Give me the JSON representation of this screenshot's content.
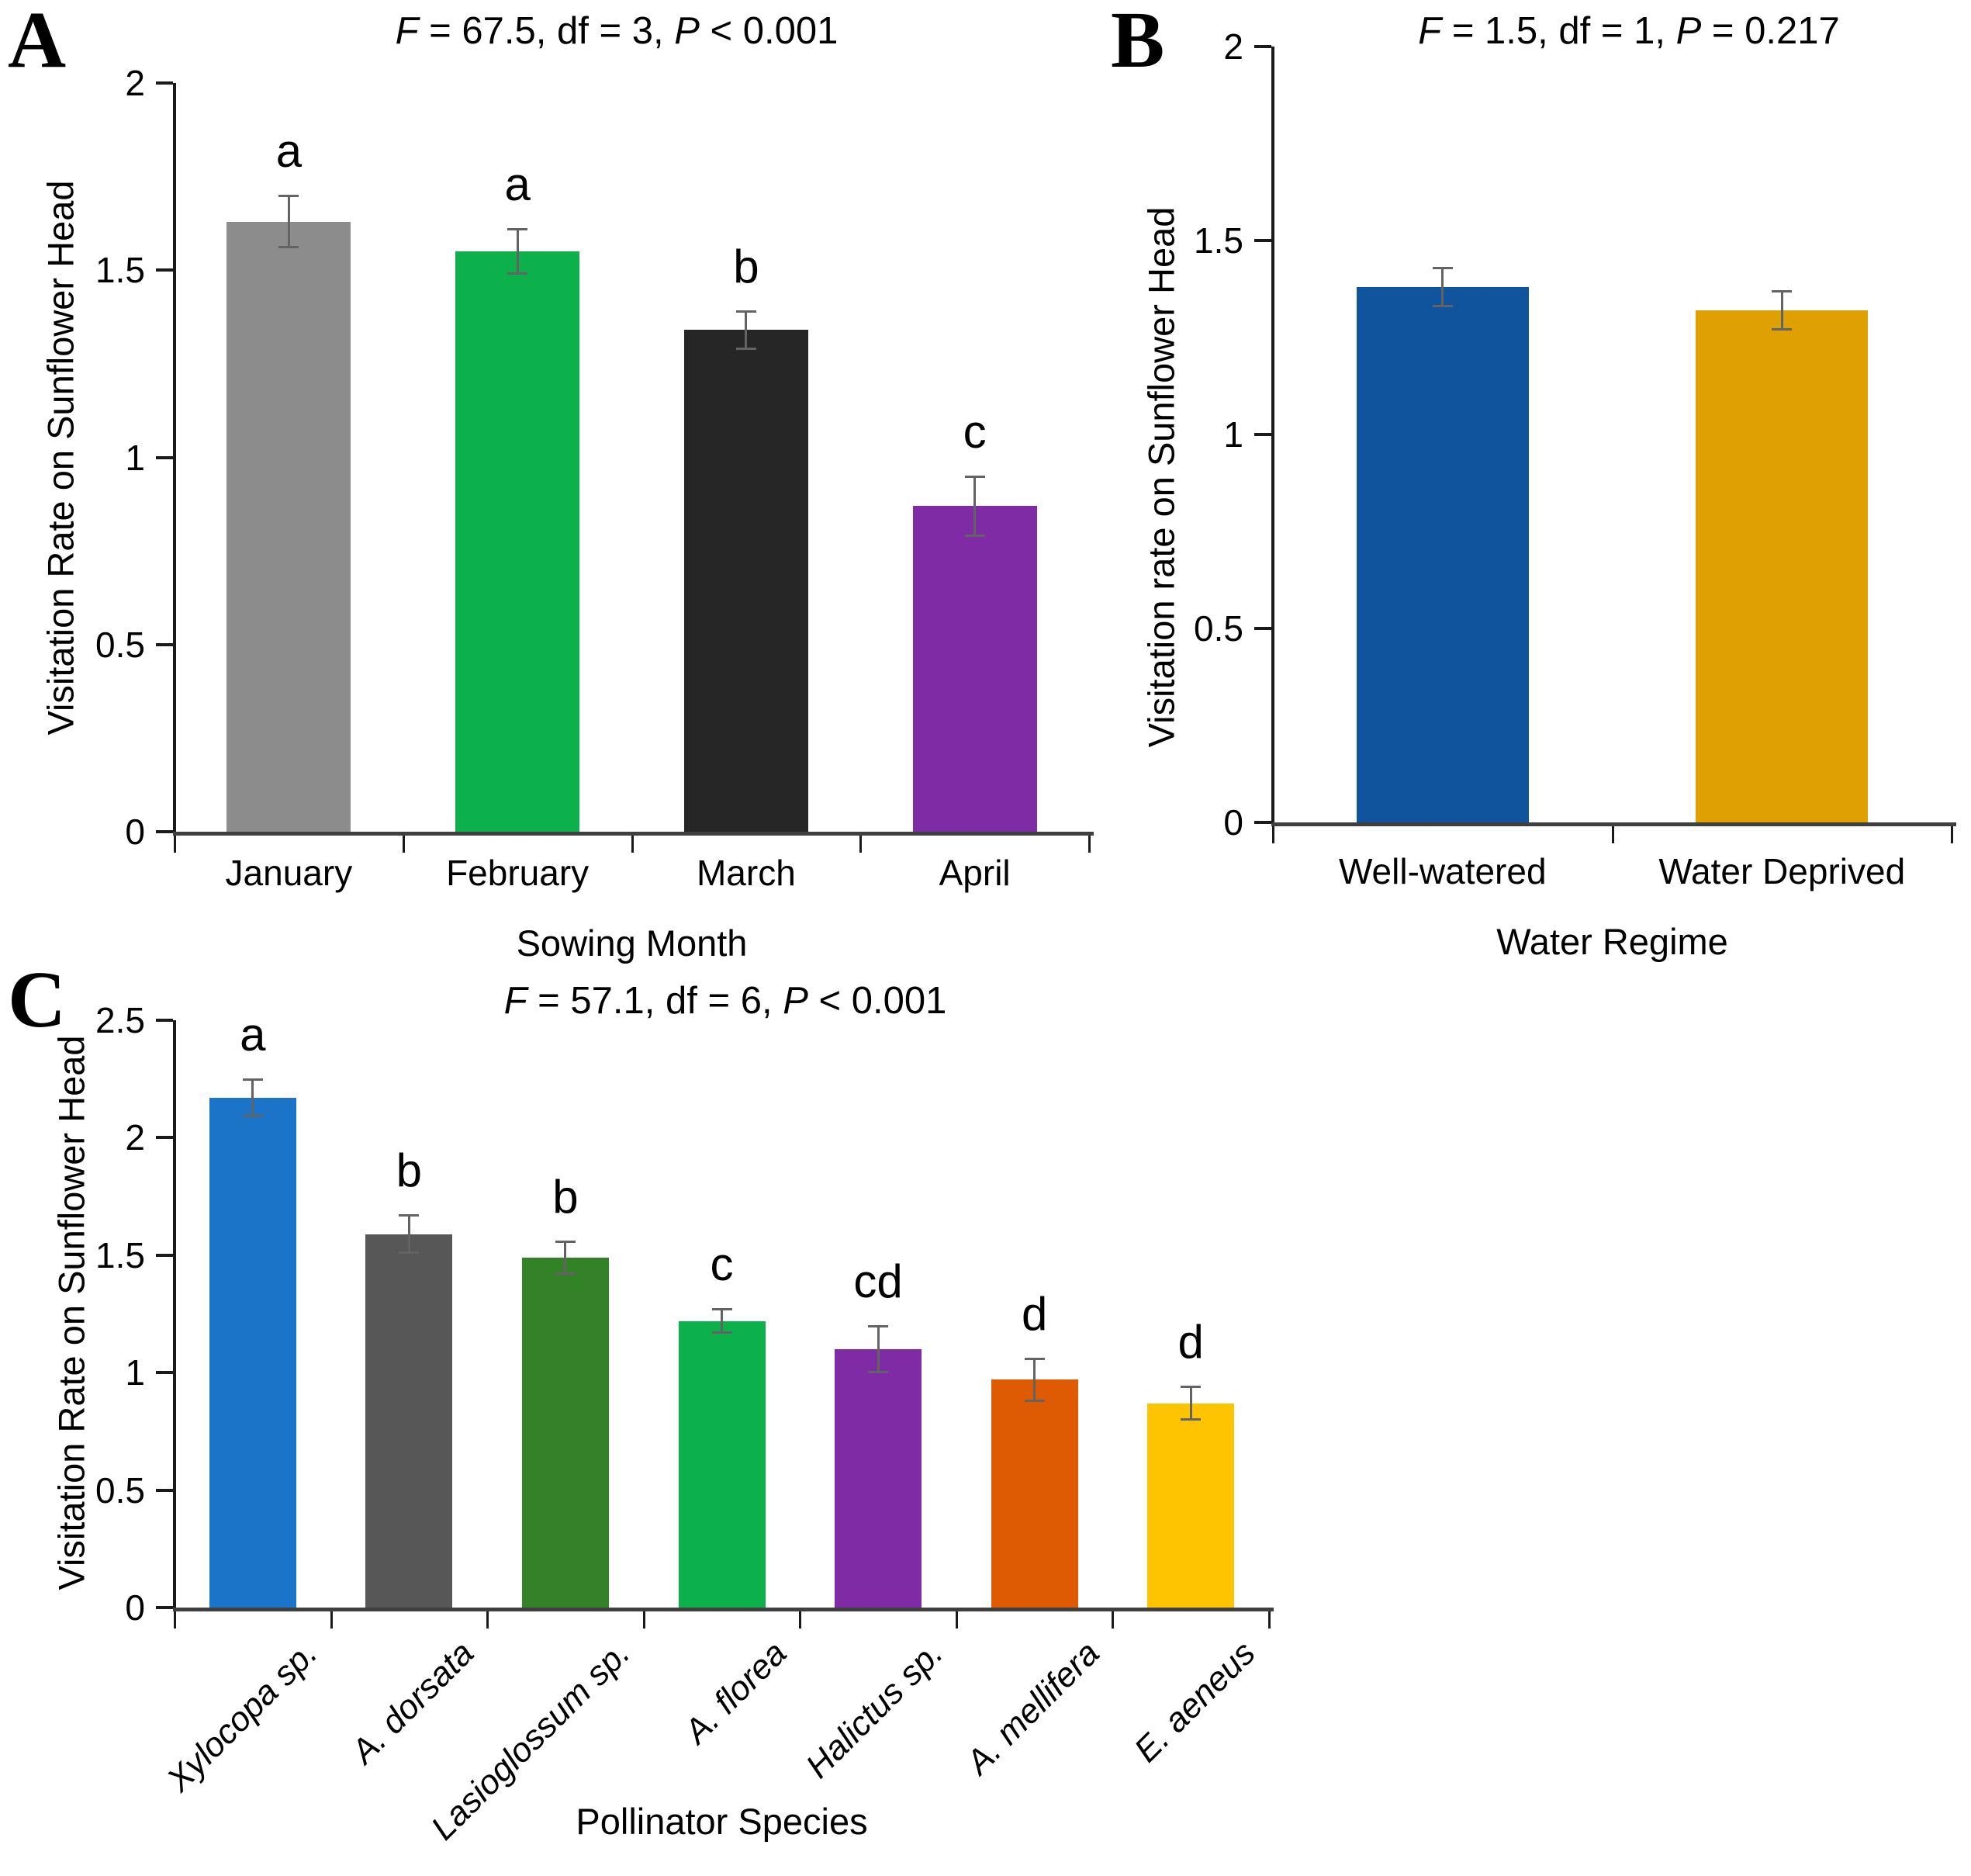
{
  "figure": {
    "background": "#ffffff",
    "axis_color": "#1a1a1a",
    "error_bar_color": "#636363"
  },
  "chart_data": [
    {
      "panel_letter": "A",
      "type": "bar",
      "title_plain": "F = 67.5, df = 3, P < 0.001",
      "title_parts": [
        {
          "text": "F",
          "italic": true
        },
        {
          "text": " = 67.5, df = 3, ",
          "italic": false
        },
        {
          "text": "P",
          "italic": true
        },
        {
          "text": " < 0.001",
          "italic": false
        }
      ],
      "xlabel": "Sowing Month",
      "ylabel": "Visitation Rate on Sunflower Head",
      "ylim": [
        0,
        2
      ],
      "yticks": [
        0,
        0.5,
        1,
        1.5,
        2
      ],
      "ytick_labels": [
        "0",
        "0.5",
        "1",
        "1.5",
        "2"
      ],
      "categories": [
        "January",
        "February",
        "March",
        "April"
      ],
      "values": [
        1.63,
        1.55,
        1.34,
        0.87
      ],
      "errors": [
        0.07,
        0.06,
        0.05,
        0.08
      ],
      "sig_letters": [
        "a",
        "a",
        "b",
        "c"
      ],
      "bar_colors": [
        "#8C8C8C",
        "#0CB14C",
        "#262626",
        "#7F2BA5"
      ],
      "italic_categories": false,
      "grid": "off",
      "legend": "none"
    },
    {
      "panel_letter": "B",
      "type": "bar",
      "title_plain": "F = 1.5, df = 1, P = 0.217",
      "title_parts": [
        {
          "text": "F",
          "italic": true
        },
        {
          "text": " = 1.5, df = 1, ",
          "italic": false
        },
        {
          "text": "P",
          "italic": true
        },
        {
          "text": " = 0.217",
          "italic": false
        }
      ],
      "xlabel": "Water Regime",
      "ylabel": "Visitation rate on Sunflower Head",
      "ylim": [
        0,
        2
      ],
      "yticks": [
        0,
        0.5,
        1,
        1.5,
        2
      ],
      "ytick_labels": [
        "0",
        "0.5",
        "1",
        "1.5",
        "2"
      ],
      "categories": [
        "Well-watered",
        "Water Deprived"
      ],
      "values": [
        1.38,
        1.32
      ],
      "errors": [
        0.05,
        0.05
      ],
      "sig_letters": [
        "",
        ""
      ],
      "bar_colors": [
        "#10549E",
        "#DFA004"
      ],
      "italic_categories": false,
      "grid": "off",
      "legend": "none"
    },
    {
      "panel_letter": "C",
      "type": "bar",
      "title_plain": "F = 57.1, df = 6, P < 0.001",
      "title_parts": [
        {
          "text": "F",
          "italic": true
        },
        {
          "text": " = 57.1, df = 6, ",
          "italic": false
        },
        {
          "text": "P",
          "italic": true
        },
        {
          "text": " < 0.001",
          "italic": false
        }
      ],
      "xlabel": "Pollinator Species",
      "ylabel": "Visitation Rate on Sunflower Head",
      "ylim": [
        0,
        2.5
      ],
      "yticks": [
        0,
        0.5,
        1,
        1.5,
        2,
        2.5
      ],
      "ytick_labels": [
        "0",
        "0.5",
        "1",
        "1.5",
        "2",
        "2.5"
      ],
      "categories": [
        "Xylocopa sp.",
        "A. dorsata",
        "Lasioglossum sp.",
        "A. florea",
        "Halictus sp.",
        "A. mellifera",
        "E. aeneus"
      ],
      "values": [
        2.17,
        1.59,
        1.49,
        1.22,
        1.1,
        0.97,
        0.87
      ],
      "errors": [
        0.08,
        0.08,
        0.07,
        0.05,
        0.1,
        0.09,
        0.07
      ],
      "sig_letters": [
        "a",
        "b",
        "b",
        "c",
        "cd",
        "d",
        "d"
      ],
      "bar_colors": [
        "#1B74C8",
        "#575757",
        "#348227",
        "#0CB14C",
        "#7F2BA5",
        "#DE5B03",
        "#FEC401"
      ],
      "italic_categories": true,
      "grid": "off",
      "legend": "none"
    }
  ]
}
